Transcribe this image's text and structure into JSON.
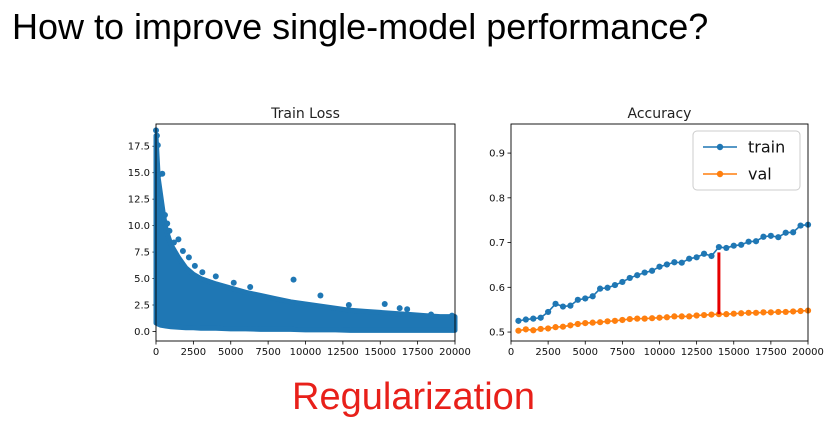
{
  "slide": {
    "title": "How to improve single-model performance?",
    "bottom_label": "Regularization",
    "bottom_label_color": "#e8201a"
  },
  "chart_data": [
    {
      "type": "scatter",
      "title": "Train Loss",
      "xlabel": "",
      "ylabel": "",
      "xlim": [
        0,
        20000
      ],
      "ylim": [
        -0.9,
        19.6
      ],
      "xticks": [
        0,
        2500,
        5000,
        7500,
        10000,
        12500,
        15000,
        17500,
        20000
      ],
      "yticks": [
        0.0,
        2.5,
        5.0,
        7.5,
        10.0,
        12.5,
        15.0,
        17.5
      ],
      "ytick_labels": [
        "0.0",
        "2.5",
        "5.0",
        "7.5",
        "10.0",
        "12.5",
        "15.0",
        "17.5"
      ],
      "grid": false,
      "color": "#1f77b4",
      "series": [
        {
          "envelope_x": [
            0,
            150,
            300,
            500,
            700,
            1000,
            1500,
            2000,
            2500,
            3000,
            4000,
            5000,
            6000,
            7000,
            8000,
            9000,
            10000,
            11000,
            12000,
            13000,
            14000,
            15000,
            16000,
            17000,
            18000,
            19000,
            20000
          ],
          "envelope_upper": [
            18.5,
            14.5,
            13.0,
            11.0,
            9.5,
            8.2,
            7.0,
            6.0,
            5.4,
            5.0,
            4.5,
            4.1,
            3.7,
            3.4,
            3.1,
            2.8,
            2.6,
            2.4,
            2.2,
            2.0,
            1.9,
            1.8,
            1.7,
            1.6,
            1.5,
            1.4,
            1.4
          ],
          "envelope_lower": [
            0.8,
            0.7,
            0.6,
            0.55,
            0.5,
            0.45,
            0.4,
            0.35,
            0.35,
            0.3,
            0.3,
            0.25,
            0.25,
            0.2,
            0.2,
            0.2,
            0.15,
            0.15,
            0.15,
            0.1,
            0.1,
            0.1,
            0.1,
            0.1,
            0.1,
            0.1,
            0.1
          ],
          "outliers": [
            [
              0,
              19.0
            ],
            [
              60,
              18.5
            ],
            [
              120,
              17.6
            ],
            [
              200,
              14.8
            ],
            [
              420,
              14.9
            ],
            [
              280,
              12.6
            ],
            [
              380,
              11.6
            ],
            [
              600,
              11.0
            ],
            [
              750,
              10.2
            ],
            [
              900,
              9.5
            ],
            [
              1200,
              8.4
            ],
            [
              1500,
              8.7
            ],
            [
              1800,
              7.6
            ],
            [
              2200,
              7.0
            ],
            [
              2600,
              6.2
            ],
            [
              3100,
              5.6
            ],
            [
              4000,
              5.2
            ],
            [
              5200,
              4.6
            ],
            [
              6300,
              4.2
            ],
            [
              9200,
              4.9
            ],
            [
              11000,
              3.4
            ],
            [
              15300,
              2.6
            ],
            [
              16300,
              2.2
            ],
            [
              16800,
              2.1
            ],
            [
              18400,
              1.6
            ],
            [
              19800,
              1.5
            ],
            [
              12900,
              2.5
            ]
          ]
        }
      ]
    },
    {
      "type": "line",
      "title": "Accuracy",
      "xlabel": "",
      "ylabel": "",
      "xlim": [
        0,
        20000
      ],
      "ylim": [
        0.48,
        0.965
      ],
      "xticks": [
        0,
        2500,
        5000,
        7500,
        10000,
        12500,
        15000,
        17500,
        20000
      ],
      "yticks": [
        0.5,
        0.6,
        0.7,
        0.8,
        0.9
      ],
      "ytick_labels": [
        "0.5",
        "0.6",
        "0.7",
        "0.8",
        "0.9"
      ],
      "grid": false,
      "legend_position": "top-right",
      "x": [
        500,
        1000,
        1500,
        2000,
        2500,
        3000,
        3500,
        4000,
        4500,
        5000,
        5500,
        6000,
        6500,
        7000,
        7500,
        8000,
        8500,
        9000,
        9500,
        10000,
        10500,
        11000,
        11500,
        12000,
        12500,
        13000,
        13500,
        14000,
        14500,
        15000,
        15500,
        16000,
        16500,
        17000,
        17500,
        18000,
        18500,
        19000,
        19500,
        20000
      ],
      "series": [
        {
          "name": "train",
          "color": "#1f77b4",
          "values": [
            0.525,
            0.528,
            0.53,
            0.532,
            0.545,
            0.563,
            0.557,
            0.559,
            0.572,
            0.575,
            0.58,
            0.597,
            0.599,
            0.605,
            0.612,
            0.621,
            0.627,
            0.633,
            0.637,
            0.646,
            0.651,
            0.656,
            0.655,
            0.664,
            0.667,
            0.675,
            0.67,
            0.69,
            0.688,
            0.693,
            0.695,
            0.702,
            0.703,
            0.713,
            0.715,
            0.712,
            0.722,
            0.723,
            0.738,
            0.74
          ]
        },
        {
          "name": "val",
          "color": "#ff7f0e",
          "values": [
            0.503,
            0.506,
            0.504,
            0.507,
            0.508,
            0.511,
            0.512,
            0.515,
            0.518,
            0.52,
            0.521,
            0.522,
            0.524,
            0.525,
            0.527,
            0.529,
            0.53,
            0.53,
            0.531,
            0.532,
            0.533,
            0.535,
            0.535,
            0.535,
            0.537,
            0.538,
            0.539,
            0.54,
            0.54,
            0.541,
            0.542,
            0.543,
            0.543,
            0.544,
            0.544,
            0.545,
            0.545,
            0.546,
            0.547,
            0.548
          ]
        }
      ],
      "annotation": {
        "kind": "gap-marker",
        "x": 14000,
        "y_from": 0.54,
        "y_to": 0.678,
        "color": "#e60000"
      }
    }
  ]
}
